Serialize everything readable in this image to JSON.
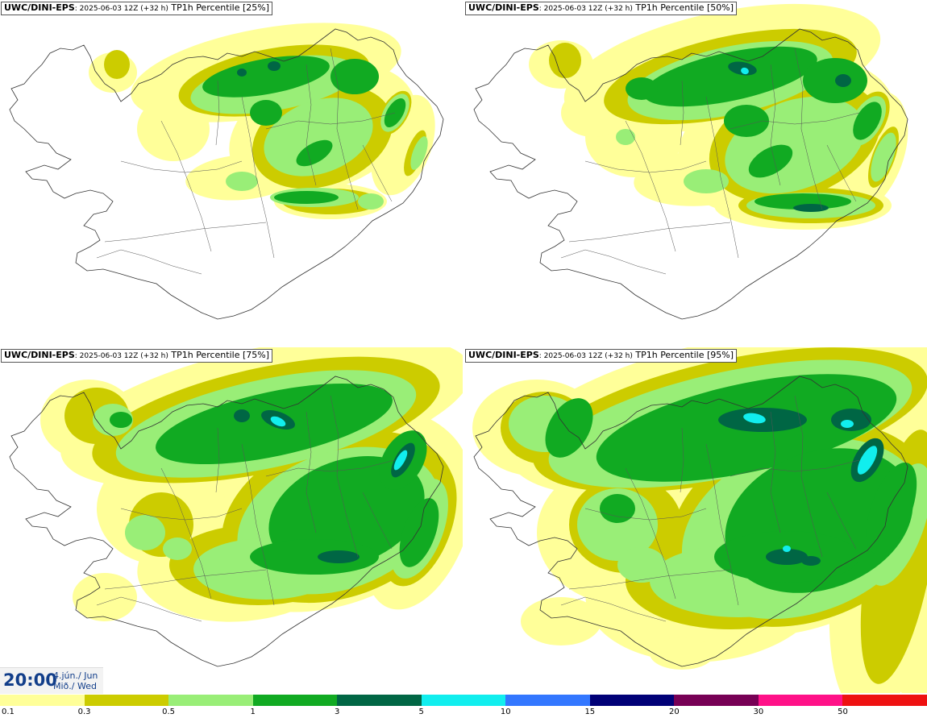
{
  "panels": [
    {
      "source": "UWC/DINI-EPS",
      "run": ": 2025-06-03 12Z (+32 h)",
      "title": " TP1h Percentile [25%]"
    },
    {
      "source": "UWC/DINI-EPS",
      "run": ": 2025-06-03 12Z (+32 h)",
      "title": " TP1h Percentile [50%]"
    },
    {
      "source": "UWC/DINI-EPS",
      "run": ": 2025-06-03 12Z (+32 h)",
      "title": " TP1h Percentile [75%]"
    },
    {
      "source": "UWC/DINI-EPS",
      "run": ": 2025-06-03 12Z (+32 h)",
      "title": " TP1h Percentile [95%]"
    }
  ],
  "valid": {
    "time": "20:00",
    "date_line1": "4.jún./ Jun",
    "date_line2": "Mið./ Wed"
  },
  "legend": {
    "ticks": [
      "0.1",
      "0.3",
      "0.5",
      "1",
      "3",
      "5",
      "10",
      "15",
      "20",
      "30",
      "50"
    ],
    "colors": [
      "#ffff99",
      "#cccc00",
      "#99ee77",
      "#11aa22",
      "#006644",
      "#11eeee",
      "#3377ff",
      "#000077",
      "#770055",
      "#ff1188",
      "#ee1111"
    ]
  },
  "palette": {
    "l1": "#ffff99",
    "l2": "#cccc00",
    "l3": "#99ee77",
    "l4": "#11aa22",
    "l5": "#006644",
    "l6": "#11eeee"
  }
}
